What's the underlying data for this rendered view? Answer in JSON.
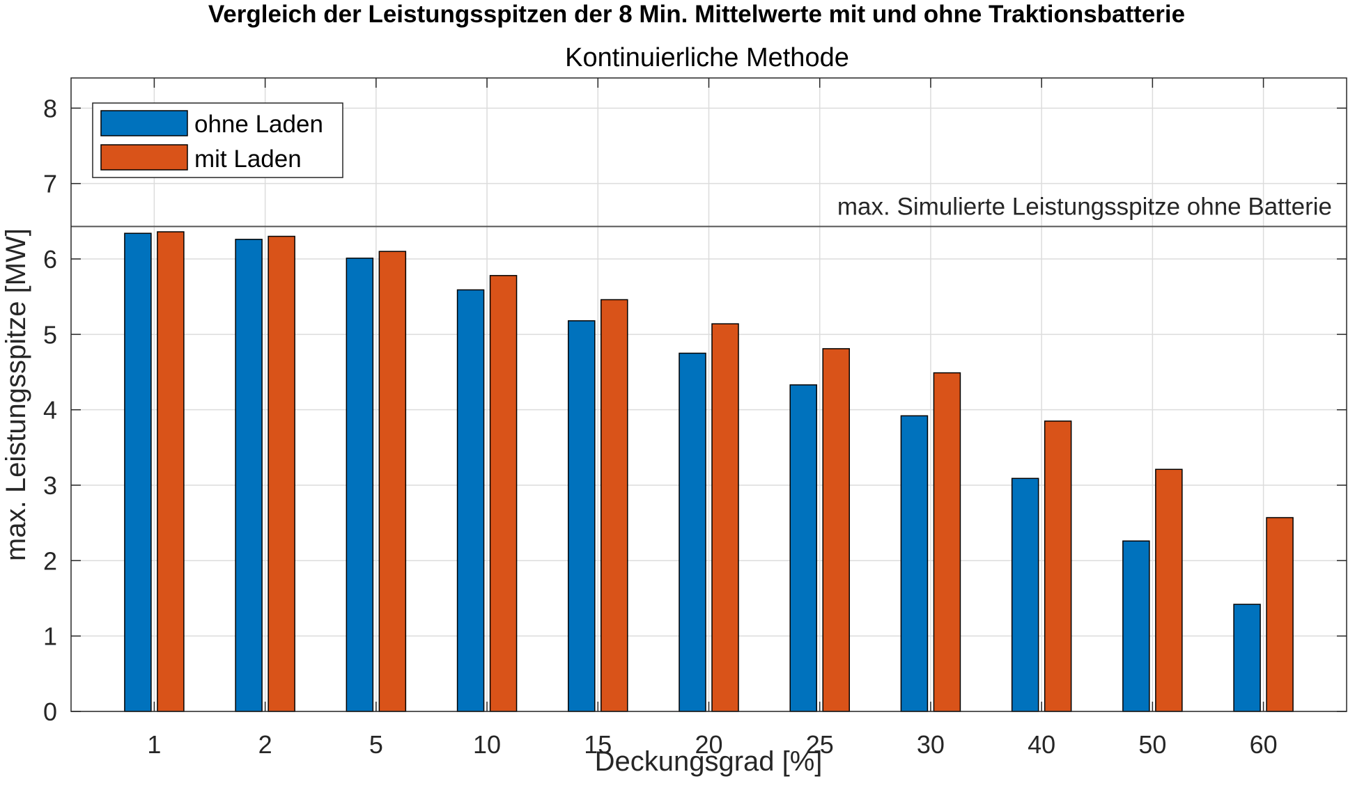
{
  "chart_data": {
    "type": "bar",
    "title": "Vergleich der Leistungsspitzen der 8 Min. Mittelwerte mit und ohne Traktionsbatterie",
    "subtitle": "Kontinuierliche Methode",
    "xlabel": "Deckungsgrad [%]",
    "ylabel": "max. Leistungsspitze [MW]",
    "categories": [
      "1",
      "2",
      "5",
      "10",
      "15",
      "20",
      "25",
      "30",
      "40",
      "50",
      "60"
    ],
    "series": [
      {
        "name": "ohne Laden",
        "color": "#0072BD",
        "values": [
          6.34,
          6.26,
          6.01,
          5.59,
          5.18,
          4.75,
          4.33,
          3.92,
          3.09,
          2.26,
          1.42
        ]
      },
      {
        "name": "mit Laden",
        "color": "#D95319",
        "values": [
          6.36,
          6.3,
          6.1,
          5.78,
          5.46,
          5.14,
          4.81,
          4.49,
          3.85,
          3.21,
          2.57
        ]
      }
    ],
    "ylim": [
      0,
      8.4
    ],
    "yticks": [
      0,
      1,
      2,
      3,
      4,
      5,
      6,
      7,
      8
    ],
    "grid": true,
    "legend_location": "top-left",
    "reference_line": {
      "value": 6.43,
      "label": "max. Simulierte Leistungsspitze ohne Batterie"
    }
  }
}
